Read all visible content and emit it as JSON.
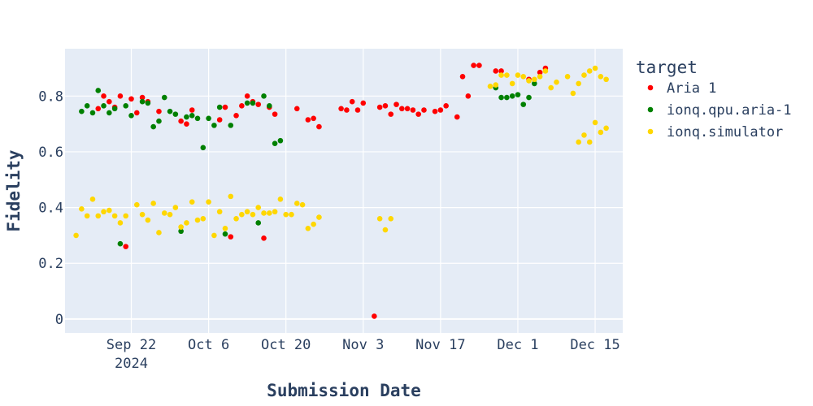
{
  "chart_data": {
    "type": "scatter",
    "xlabel": "Submission Date",
    "ylabel": "Fidelity",
    "x_range": [
      "2024-09-10",
      "2024-12-20"
    ],
    "ylim": [
      -0.05,
      0.97
    ],
    "grid": true,
    "x_ticks": [
      {
        "date": "2024-09-22",
        "label": "Sep 22",
        "sublabel": "2024"
      },
      {
        "date": "2024-10-06",
        "label": "Oct 6",
        "sublabel": ""
      },
      {
        "date": "2024-10-20",
        "label": "Oct 20",
        "sublabel": ""
      },
      {
        "date": "2024-11-03",
        "label": "Nov 3",
        "sublabel": ""
      },
      {
        "date": "2024-11-17",
        "label": "Nov 17",
        "sublabel": ""
      },
      {
        "date": "2024-12-01",
        "label": "Dec 1",
        "sublabel": ""
      },
      {
        "date": "2024-12-15",
        "label": "Dec 15",
        "sublabel": ""
      }
    ],
    "y_ticks": [
      {
        "value": 0,
        "label": "0"
      },
      {
        "value": 0.2,
        "label": "0.2"
      },
      {
        "value": 0.4,
        "label": "0.4"
      },
      {
        "value": 0.6,
        "label": "0.6"
      },
      {
        "value": 0.8,
        "label": "0.8"
      }
    ],
    "legend": {
      "title": "target",
      "placement": "right"
    },
    "series": [
      {
        "name": "Aria 1",
        "color": "#ff0000",
        "points": [
          [
            "2024-09-16",
            0.755
          ],
          [
            "2024-09-17",
            0.8
          ],
          [
            "2024-09-18",
            0.78
          ],
          [
            "2024-09-19",
            0.76
          ],
          [
            "2024-09-20",
            0.8
          ],
          [
            "2024-09-21",
            0.26
          ],
          [
            "2024-09-22",
            0.79
          ],
          [
            "2024-09-23",
            0.74
          ],
          [
            "2024-09-24",
            0.795
          ],
          [
            "2024-09-25",
            0.78
          ],
          [
            "2024-09-27",
            0.745
          ],
          [
            "2024-10-01",
            0.71
          ],
          [
            "2024-10-02",
            0.7
          ],
          [
            "2024-10-03",
            0.75
          ],
          [
            "2024-10-08",
            0.715
          ],
          [
            "2024-10-09",
            0.76
          ],
          [
            "2024-10-10",
            0.295
          ],
          [
            "2024-10-11",
            0.73
          ],
          [
            "2024-10-12",
            0.765
          ],
          [
            "2024-10-13",
            0.8
          ],
          [
            "2024-10-14",
            0.78
          ],
          [
            "2024-10-15",
            0.77
          ],
          [
            "2024-10-16",
            0.29
          ],
          [
            "2024-10-17",
            0.76
          ],
          [
            "2024-10-18",
            0.735
          ],
          [
            "2024-10-22",
            0.755
          ],
          [
            "2024-10-24",
            0.715
          ],
          [
            "2024-10-25",
            0.72
          ],
          [
            "2024-10-26",
            0.69
          ],
          [
            "2024-10-30",
            0.755
          ],
          [
            "2024-10-31",
            0.75
          ],
          [
            "2024-11-01",
            0.78
          ],
          [
            "2024-11-02",
            0.75
          ],
          [
            "2024-11-03",
            0.775
          ],
          [
            "2024-11-05",
            0.01
          ],
          [
            "2024-11-06",
            0.76
          ],
          [
            "2024-11-07",
            0.765
          ],
          [
            "2024-11-08",
            0.735
          ],
          [
            "2024-11-09",
            0.77
          ],
          [
            "2024-11-10",
            0.755
          ],
          [
            "2024-11-11",
            0.755
          ],
          [
            "2024-11-12",
            0.75
          ],
          [
            "2024-11-13",
            0.735
          ],
          [
            "2024-11-14",
            0.75
          ],
          [
            "2024-11-16",
            0.745
          ],
          [
            "2024-11-17",
            0.75
          ],
          [
            "2024-11-18",
            0.765
          ],
          [
            "2024-11-20",
            0.725
          ],
          [
            "2024-11-21",
            0.87
          ],
          [
            "2024-11-22",
            0.8
          ],
          [
            "2024-11-23",
            0.91
          ],
          [
            "2024-11-24",
            0.91
          ],
          [
            "2024-11-27",
            0.89
          ],
          [
            "2024-11-28",
            0.89
          ],
          [
            "2024-12-03",
            0.86
          ],
          [
            "2024-12-05",
            0.885
          ],
          [
            "2024-12-06",
            0.9
          ]
        ]
      },
      {
        "name": "ionq.qpu.aria-1",
        "color": "#008000",
        "points": [
          [
            "2024-09-13",
            0.745
          ],
          [
            "2024-09-14",
            0.765
          ],
          [
            "2024-09-15",
            0.74
          ],
          [
            "2024-09-16",
            0.82
          ],
          [
            "2024-09-17",
            0.765
          ],
          [
            "2024-09-18",
            0.74
          ],
          [
            "2024-09-19",
            0.755
          ],
          [
            "2024-09-20",
            0.27
          ],
          [
            "2024-09-21",
            0.765
          ],
          [
            "2024-09-22",
            0.73
          ],
          [
            "2024-09-24",
            0.78
          ],
          [
            "2024-09-25",
            0.775
          ],
          [
            "2024-09-26",
            0.69
          ],
          [
            "2024-09-27",
            0.71
          ],
          [
            "2024-09-28",
            0.795
          ],
          [
            "2024-09-29",
            0.745
          ],
          [
            "2024-09-30",
            0.735
          ],
          [
            "2024-10-01",
            0.315
          ],
          [
            "2024-10-02",
            0.725
          ],
          [
            "2024-10-03",
            0.73
          ],
          [
            "2024-10-04",
            0.72
          ],
          [
            "2024-10-05",
            0.615
          ],
          [
            "2024-10-06",
            0.72
          ],
          [
            "2024-10-07",
            0.695
          ],
          [
            "2024-10-08",
            0.76
          ],
          [
            "2024-10-09",
            0.305
          ],
          [
            "2024-10-10",
            0.695
          ],
          [
            "2024-10-13",
            0.775
          ],
          [
            "2024-10-14",
            0.775
          ],
          [
            "2024-10-15",
            0.345
          ],
          [
            "2024-10-16",
            0.8
          ],
          [
            "2024-10-17",
            0.765
          ],
          [
            "2024-10-18",
            0.63
          ],
          [
            "2024-10-19",
            0.64
          ],
          [
            "2024-11-27",
            0.83
          ],
          [
            "2024-11-28",
            0.795
          ],
          [
            "2024-11-29",
            0.795
          ],
          [
            "2024-11-30",
            0.8
          ],
          [
            "2024-12-01",
            0.805
          ],
          [
            "2024-12-02",
            0.77
          ],
          [
            "2024-12-03",
            0.795
          ],
          [
            "2024-12-04",
            0.845
          ]
        ]
      },
      {
        "name": "ionq.simulator",
        "color": "#ffd700",
        "points": [
          [
            "2024-09-12",
            0.3
          ],
          [
            "2024-09-13",
            0.395
          ],
          [
            "2024-09-14",
            0.37
          ],
          [
            "2024-09-15",
            0.43
          ],
          [
            "2024-09-16",
            0.37
          ],
          [
            "2024-09-17",
            0.385
          ],
          [
            "2024-09-18",
            0.39
          ],
          [
            "2024-09-19",
            0.37
          ],
          [
            "2024-09-20",
            0.345
          ],
          [
            "2024-09-21",
            0.37
          ],
          [
            "2024-09-23",
            0.41
          ],
          [
            "2024-09-24",
            0.375
          ],
          [
            "2024-09-25",
            0.355
          ],
          [
            "2024-09-26",
            0.415
          ],
          [
            "2024-09-27",
            0.31
          ],
          [
            "2024-09-28",
            0.38
          ],
          [
            "2024-09-29",
            0.375
          ],
          [
            "2024-09-30",
            0.4
          ],
          [
            "2024-10-01",
            0.33
          ],
          [
            "2024-10-02",
            0.345
          ],
          [
            "2024-10-03",
            0.42
          ],
          [
            "2024-10-04",
            0.355
          ],
          [
            "2024-10-05",
            0.36
          ],
          [
            "2024-10-06",
            0.42
          ],
          [
            "2024-10-07",
            0.3
          ],
          [
            "2024-10-08",
            0.385
          ],
          [
            "2024-10-09",
            0.325
          ],
          [
            "2024-10-10",
            0.44
          ],
          [
            "2024-10-11",
            0.36
          ],
          [
            "2024-10-12",
            0.375
          ],
          [
            "2024-10-13",
            0.385
          ],
          [
            "2024-10-14",
            0.375
          ],
          [
            "2024-10-15",
            0.4
          ],
          [
            "2024-10-16",
            0.38
          ],
          [
            "2024-10-17",
            0.38
          ],
          [
            "2024-10-18",
            0.385
          ],
          [
            "2024-10-19",
            0.43
          ],
          [
            "2024-10-20",
            0.375
          ],
          [
            "2024-10-21",
            0.375
          ],
          [
            "2024-10-22",
            0.415
          ],
          [
            "2024-10-23",
            0.41
          ],
          [
            "2024-10-24",
            0.325
          ],
          [
            "2024-10-25",
            0.34
          ],
          [
            "2024-10-26",
            0.365
          ],
          [
            "2024-11-06",
            0.36
          ],
          [
            "2024-11-07",
            0.32
          ],
          [
            "2024-11-08",
            0.36
          ],
          [
            "2024-11-26",
            0.835
          ],
          [
            "2024-11-27",
            0.84
          ],
          [
            "2024-11-28",
            0.875
          ],
          [
            "2024-11-29",
            0.875
          ],
          [
            "2024-11-30",
            0.845
          ],
          [
            "2024-12-01",
            0.875
          ],
          [
            "2024-12-02",
            0.87
          ],
          [
            "2024-12-03",
            0.855
          ],
          [
            "2024-12-04",
            0.86
          ],
          [
            "2024-12-05",
            0.87
          ],
          [
            "2024-12-06",
            0.89
          ],
          [
            "2024-12-07",
            0.83
          ],
          [
            "2024-12-08",
            0.85
          ],
          [
            "2024-12-10",
            0.87
          ],
          [
            "2024-12-11",
            0.81
          ],
          [
            "2024-12-12",
            0.635
          ],
          [
            "2024-12-12",
            0.845
          ],
          [
            "2024-12-13",
            0.66
          ],
          [
            "2024-12-13",
            0.875
          ],
          [
            "2024-12-14",
            0.635
          ],
          [
            "2024-12-14",
            0.89
          ],
          [
            "2024-12-15",
            0.705
          ],
          [
            "2024-12-15",
            0.9
          ],
          [
            "2024-12-16",
            0.67
          ],
          [
            "2024-12-16",
            0.87
          ],
          [
            "2024-12-17",
            0.685
          ],
          [
            "2024-12-17",
            0.86
          ]
        ]
      }
    ]
  }
}
